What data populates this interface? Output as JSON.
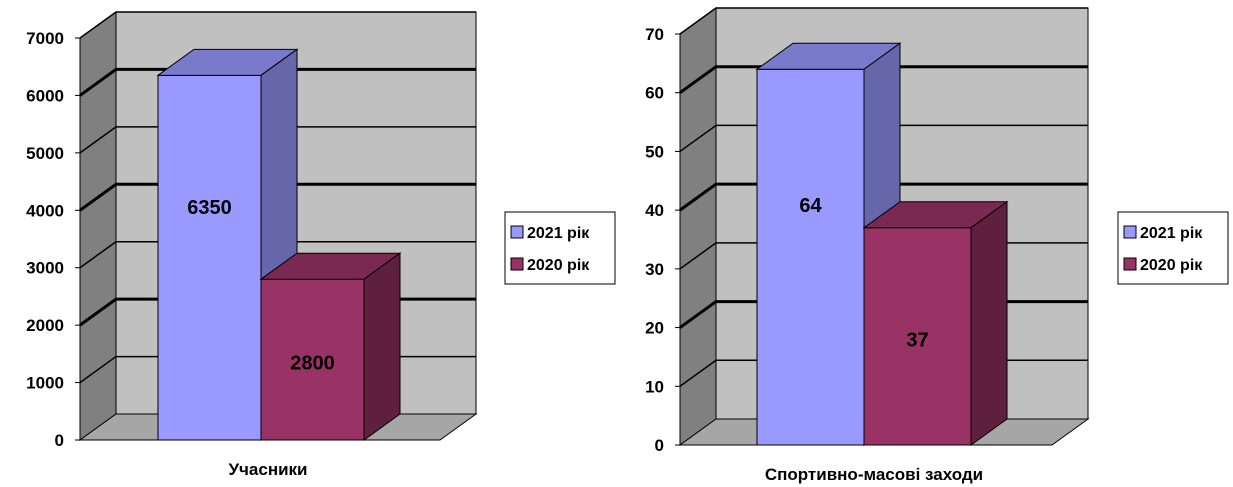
{
  "chart_data": [
    {
      "type": "bar",
      "categories": [
        "Учасники"
      ],
      "series": [
        {
          "name": "2021 рік",
          "values": [
            6350
          ],
          "label": "6350"
        },
        {
          "name": "2020 рік",
          "values": [
            2800
          ],
          "label": "2800"
        }
      ],
      "ylim": [
        0,
        7000
      ],
      "yticks": [
        "0",
        "1000",
        "2000",
        "3000",
        "4000",
        "5000",
        "6000",
        "7000"
      ],
      "grid": true,
      "legend": "right",
      "style": "3d"
    },
    {
      "type": "bar",
      "categories": [
        "Спортивно-масові заходи"
      ],
      "series": [
        {
          "name": "2021 рік",
          "values": [
            64
          ],
          "label": "64"
        },
        {
          "name": "2020 рік",
          "values": [
            37
          ],
          "label": "37"
        }
      ],
      "ylim": [
        0,
        70
      ],
      "yticks": [
        "0",
        "10",
        "20",
        "30",
        "40",
        "50",
        "60",
        "70"
      ],
      "grid": true,
      "legend": "right",
      "style": "3d"
    }
  ],
  "colors": {
    "series_2021": "#9999ff",
    "series_2020": "#993366",
    "wall": "#c0c0c0",
    "side_wall": "#808080",
    "floor": "#a6a6a6"
  }
}
